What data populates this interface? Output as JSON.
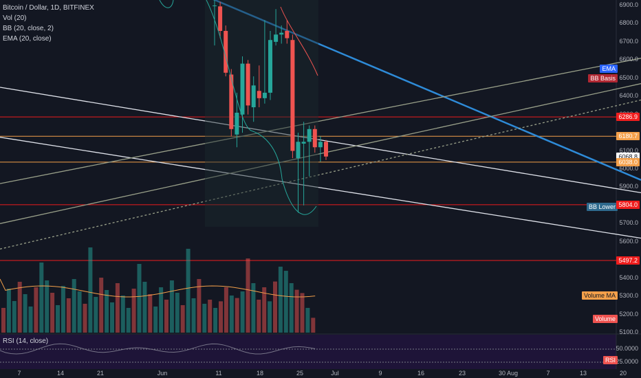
{
  "legend": {
    "title": "Bitcoin / Dollar, 1D, BITFINEX",
    "vol": "Vol (20)",
    "bb": "BB (20, close, 2)",
    "ema": "EMA (20, close)"
  },
  "rsi_label": "RSI (14, close)",
  "price_ticks": [
    "6900.0",
    "6800.0",
    "6700.0",
    "6600.0",
    "6500.0",
    "6400.0",
    "6300.0",
    "6100.0",
    "6000.0",
    "5900.0",
    "5700.0",
    "5600.0",
    "5400.0",
    "5300.0",
    "5200.0",
    "5100.0"
  ],
  "rsi_ticks": [
    "50.0000",
    "25.0000"
  ],
  "badges": [
    {
      "text": "EMA",
      "price": 6540,
      "color": "#2962ff",
      "fg": "#ffffff"
    },
    {
      "text": "BB Basis",
      "price": 6488,
      "color": "#b22833",
      "fg": "#ffffff"
    },
    {
      "text": "6286.9",
      "price": 6286.9,
      "color": "#ef1d1d",
      "fg": "#ffffff"
    },
    {
      "text": "6180.7",
      "price": 6180.7,
      "color": "#f4a04a",
      "fg": "#ffffff"
    },
    {
      "text": "6068.8",
      "price": 6068.8,
      "color": "#ffffff",
      "fg": "#131722"
    },
    {
      "text": "6038.0",
      "price": 6038.0,
      "color": "#f4a04a",
      "fg": "#ffffff"
    },
    {
      "text": "BB Lower",
      "price": 5790,
      "color": "#2e6a8e",
      "fg": "#ffffff"
    },
    {
      "text": "5804.0",
      "price": 5804.0,
      "color": "#ef1d1d",
      "fg": "#ffffff"
    },
    {
      "text": "5497.2",
      "price": 5497.2,
      "color": "#ef1d1d",
      "fg": "#ffffff"
    },
    {
      "text": "Volume MA",
      "price": 5290,
      "color": "#f4a04a",
      "fg": "#131722"
    },
    {
      "text": "Volume",
      "price": 5180,
      "color": "#ef5350",
      "fg": "#ffffff"
    },
    {
      "text": "RSI",
      "rsi": true,
      "color": "#ef5350",
      "fg": "#ffffff"
    }
  ],
  "x_ticks": [
    "7",
    "14",
    "21",
    "Jun",
    "11",
    "18",
    "25",
    "Jul",
    "9",
    "16",
    "23",
    "30",
    "Aug",
    "7",
    "13",
    "20"
  ],
  "chart_data": {
    "type": "candlestick",
    "symbol": "BTCUSD",
    "ylim": [
      5075,
      6950
    ],
    "candles": [
      {
        "o": 6900,
        "h": 6940,
        "l": 6680,
        "c": 6900
      },
      {
        "o": 6895,
        "h": 6920,
        "l": 6720,
        "c": 6760
      },
      {
        "o": 6760,
        "h": 6790,
        "l": 6510,
        "c": 6530
      },
      {
        "o": 6520,
        "h": 6550,
        "l": 6180,
        "c": 6220
      },
      {
        "o": 6190,
        "h": 6420,
        "l": 6120,
        "c": 6310
      },
      {
        "o": 6300,
        "h": 6620,
        "l": 6200,
        "c": 6580
      },
      {
        "o": 6580,
        "h": 6600,
        "l": 6300,
        "c": 6350
      },
      {
        "o": 6340,
        "h": 6510,
        "l": 6260,
        "c": 6460
      },
      {
        "o": 6430,
        "h": 6570,
        "l": 6340,
        "c": 6390
      },
      {
        "o": 6390,
        "h": 6820,
        "l": 6360,
        "c": 6420
      },
      {
        "o": 6420,
        "h": 6760,
        "l": 6380,
        "c": 6710
      },
      {
        "o": 6700,
        "h": 6880,
        "l": 6680,
        "c": 6740
      },
      {
        "o": 6740,
        "h": 6790,
        "l": 6690,
        "c": 6750
      },
      {
        "o": 6760,
        "h": 6820,
        "l": 6690,
        "c": 6720
      },
      {
        "o": 6710,
        "h": 6740,
        "l": 6060,
        "c": 6100
      },
      {
        "o": 6060,
        "h": 6200,
        "l": 5760,
        "c": 6150
      },
      {
        "o": 6140,
        "h": 6260,
        "l": 5800,
        "c": 6150
      },
      {
        "o": 6150,
        "h": 6240,
        "l": 5960,
        "c": 6220
      },
      {
        "o": 6220,
        "h": 6240,
        "l": 6090,
        "c": 6120
      },
      {
        "o": 6120,
        "h": 6180,
        "l": 6040,
        "c": 6150
      },
      {
        "o": 6150,
        "h": 6160,
        "l": 6050,
        "c": 6069
      }
    ],
    "volume": [
      {
        "v": 0.35,
        "up": true
      },
      {
        "v": 0.4,
        "up": false
      },
      {
        "v": 0.3,
        "up": true
      },
      {
        "v": 0.38,
        "up": false
      },
      {
        "v": 0.55,
        "up": false
      },
      {
        "v": 0.45,
        "up": true
      },
      {
        "v": 0.42,
        "up": false
      },
      {
        "v": 0.5,
        "up": true
      },
      {
        "v": 0.9,
        "up": false
      },
      {
        "v": 0.6,
        "up": true
      },
      {
        "v": 0.4,
        "up": false
      },
      {
        "v": 0.55,
        "up": false
      },
      {
        "v": 0.38,
        "up": true
      },
      {
        "v": 0.62,
        "up": false
      },
      {
        "v": 0.8,
        "up": true
      },
      {
        "v": 0.75,
        "up": true
      },
      {
        "v": 0.6,
        "up": true
      },
      {
        "v": 0.52,
        "up": false
      },
      {
        "v": 0.48,
        "up": false
      },
      {
        "v": 0.3,
        "up": true
      },
      {
        "v": 0.18,
        "up": false
      }
    ],
    "hlines": [
      {
        "price": 6286.9,
        "color": "#ef1d1d"
      },
      {
        "price": 6180.7,
        "color": "#f4a04a"
      },
      {
        "price": 6038.0,
        "color": "#f4a04a"
      },
      {
        "price": 5804.0,
        "color": "#ef1d1d"
      },
      {
        "price": 5497.2,
        "color": "#ef1d1d"
      }
    ],
    "trendlines": [
      {
        "x1": 0,
        "y1": 6450,
        "x2": 932,
        "y2": 5870,
        "color": "#e0e3eb"
      },
      {
        "x1": 0,
        "y1": 6175,
        "x2": 932,
        "y2": 5620,
        "color": "#e0e3eb"
      },
      {
        "x1": 300,
        "y1": 6950,
        "x2": 932,
        "y2": 5940,
        "color": "#2e8bd8",
        "w": 2.5
      },
      {
        "x1": 0,
        "y1": 5920,
        "x2": 932,
        "y2": 6610,
        "color": "#9aa18a"
      },
      {
        "x1": 0,
        "y1": 5700,
        "x2": 932,
        "y2": 6470,
        "color": "#9aa18a"
      },
      {
        "x1": 0,
        "y1": 5560,
        "x2": 932,
        "y2": 6380,
        "color": "#9aa18a",
        "dash": true
      }
    ],
    "rsi_range": [
      20,
      60
    ]
  }
}
